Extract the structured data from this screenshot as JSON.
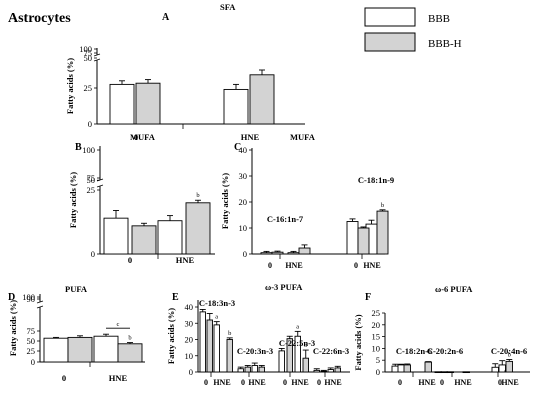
{
  "figure": {
    "title": "Astrocytes",
    "legend": [
      {
        "name": "BBB",
        "color": "#ffffff"
      },
      {
        "name": "BBB-H",
        "color": "#d3d3d3"
      }
    ]
  },
  "chart_data": [
    {
      "id": "A",
      "type": "bar",
      "title": "SFA",
      "ylabel": "Fatty acids (%)",
      "ylim": [
        0,
        100
      ],
      "axis_break": [
        50,
        75
      ],
      "yticks": [
        "0",
        "25",
        "50",
        "75",
        "100"
      ],
      "group_labels": [
        "0",
        "HNE"
      ],
      "series": [
        {
          "name": "BBB",
          "values": [
            28,
            24
          ]
        },
        {
          "name": "BBB-H",
          "values": [
            29,
            36
          ]
        }
      ],
      "errors": [
        [
          3,
          4
        ],
        [
          3,
          4
        ]
      ],
      "annotations": []
    },
    {
      "id": "B",
      "type": "bar",
      "title": "MUFA",
      "ylabel": "Fatty acids (%)",
      "ylim": [
        0,
        100
      ],
      "axis_break": [
        30,
        75
      ],
      "yticks": [
        "0",
        "25",
        "50",
        "75",
        "100"
      ],
      "group_labels": [
        "0",
        "HNE"
      ],
      "series": [
        {
          "name": "BBB",
          "values": [
            14,
            13
          ]
        },
        {
          "name": "BBB-H",
          "values": [
            11,
            20
          ]
        }
      ],
      "errors": [
        [
          3,
          2
        ],
        [
          1,
          1
        ]
      ],
      "annotations": [
        {
          "label": "b",
          "group": 1,
          "series": 1
        }
      ]
    },
    {
      "id": "C",
      "type": "bar",
      "title": "MUFA",
      "ylabel": "Fatty acids (%)",
      "ylim": [
        0,
        40
      ],
      "yticks": [
        "0",
        "10",
        "20",
        "30",
        "40"
      ],
      "groups": [
        {
          "label": "C-16:1n-7",
          "ticks": [
            "0",
            "HNE"
          ],
          "series": [
            {
              "name": "BBB",
              "values": [
                0.5,
                0.5
              ]
            },
            {
              "name": "BBB-H",
              "values": [
                0.7,
                2.3
              ]
            }
          ],
          "errors": [
            [
              0.5,
              0.5
            ],
            [
              0.4,
              1.2
            ]
          ]
        },
        {
          "label": "C-18:1n-9",
          "ticks": [
            "0",
            "HNE"
          ],
          "series": [
            {
              "name": "BBB",
              "values": [
                12.5,
                11.5
              ]
            },
            {
              "name": "BBB-H",
              "values": [
                10,
                16.5
              ]
            }
          ],
          "errors": [
            [
              1,
              1.5
            ],
            [
              0.4,
              0.5
            ]
          ],
          "annotations": [
            {
              "label": "b",
              "group": 1,
              "series": 1
            }
          ]
        }
      ]
    },
    {
      "id": "D",
      "type": "bar",
      "title": "PUFA",
      "ylabel": "Fatty acids (%)",
      "ylim": [
        0,
        100
      ],
      "yticks": [
        "0",
        "25",
        "50",
        "75",
        "90",
        "100"
      ],
      "group_labels": [
        "0",
        "HNE"
      ],
      "series": [
        {
          "name": "BBB",
          "values": [
            57,
            62
          ]
        },
        {
          "name": "BBB-H",
          "values": [
            59,
            43
          ]
        }
      ],
      "errors": [
        [
          2,
          5
        ],
        [
          4,
          3
        ]
      ],
      "annotations": [
        {
          "label": "b",
          "group": 1,
          "series": 1
        },
        {
          "label": "c",
          "type": "bracket"
        }
      ]
    },
    {
      "id": "E",
      "type": "bar",
      "title": "ω-3 PUFA",
      "ylabel": "Fatty acids (%)",
      "ylim": [
        0,
        40
      ],
      "yticks": [
        "0",
        "10",
        "20",
        "30",
        "40"
      ],
      "groups": [
        {
          "label": "C-18:3n-3",
          "ticks": [
            "0",
            "HNE"
          ],
          "series": [
            {
              "name": "BBB",
              "values": [
                37,
                29
              ]
            },
            {
              "name": "BBB-H",
              "values": [
                32,
                20
              ]
            }
          ],
          "errors": [
            [
              1.5,
              2
            ],
            [
              4,
              1
            ]
          ],
          "annotations": [
            {
              "label": "a",
              "group": 1,
              "series": 0
            },
            {
              "label": "b",
              "group": 1,
              "series": 1
            }
          ]
        },
        {
          "label": "C-20:3n-3",
          "ticks": [
            "0",
            "HNE"
          ],
          "series": [
            {
              "name": "BBB",
              "values": [
                2,
                4
              ]
            },
            {
              "name": "BBB-H",
              "values": [
                3,
                3
              ]
            }
          ],
          "errors": [
            [
              1,
              1.5
            ],
            [
              1,
              1
            ]
          ]
        },
        {
          "label": "C-22:5n-3",
          "ticks": [
            "0",
            "HNE"
          ],
          "series": [
            {
              "name": "BBB",
              "values": [
                13,
                22
              ]
            },
            {
              "name": "BBB-H",
              "values": [
                20.5,
                8.5
              ]
            }
          ],
          "errors": [
            [
              1.5,
              3
            ],
            [
              1.5,
              5
            ]
          ],
          "annotations": [
            {
              "label": "a",
              "group": 1,
              "series": 0
            },
            {
              "label": "b",
              "group": 1,
              "series": 1
            }
          ]
        },
        {
          "label": "C-22:6n-3",
          "ticks": [
            "0",
            "HNE"
          ],
          "series": [
            {
              "name": "BBB",
              "values": [
                1,
                1.5
              ]
            },
            {
              "name": "BBB-H",
              "values": [
                0.5,
                2.5
              ]
            }
          ],
          "errors": [
            [
              1,
              1
            ],
            [
              0.5,
              1
            ]
          ]
        }
      ]
    },
    {
      "id": "F",
      "type": "bar",
      "title": "ω-6 PUFA",
      "ylabel": "Fatty acids (%)",
      "ylim": [
        0,
        25
      ],
      "yticks": [
        "0",
        "5",
        "10",
        "15",
        "20",
        "25"
      ],
      "groups": [
        {
          "label": "C-18:2n-6",
          "ticks": [
            "0",
            "HNE"
          ],
          "series": [
            {
              "name": "BBB",
              "values": [
                2.5,
                3
              ]
            },
            {
              "name": "BBB-H",
              "values": [
                3,
                4.2
              ]
            }
          ],
          "errors": [
            [
              0.8,
              0.3
            ],
            [
              0.4,
              0.2
            ]
          ]
        },
        {
          "label": "C-20:2n-6",
          "ticks": [
            "0",
            "HNE"
          ],
          "series": [
            {
              "name": "BBB",
              "values": [
                0.1,
                0.1
              ]
            },
            {
              "name": "BBB-H",
              "values": [
                0.1,
                0.1
              ]
            }
          ],
          "errors": [
            [
              0,
              0
            ],
            [
              0,
              0
            ]
          ]
        },
        {
          "label": "C-20:4n-6",
          "ticks": [
            "0",
            "HNE"
          ],
          "series": [
            {
              "name": "BBB",
              "values": [
                2,
                3
              ]
            },
            {
              "name": "BBB-H",
              "values": [
                0.5,
                4.5
              ]
            }
          ],
          "errors": [
            [
              1.5,
              1.8
            ],
            [
              0.3,
              0.8
            ]
          ],
          "annotations": [
            {
              "label": "b",
              "group": 1,
              "series": 1
            }
          ]
        }
      ]
    }
  ]
}
